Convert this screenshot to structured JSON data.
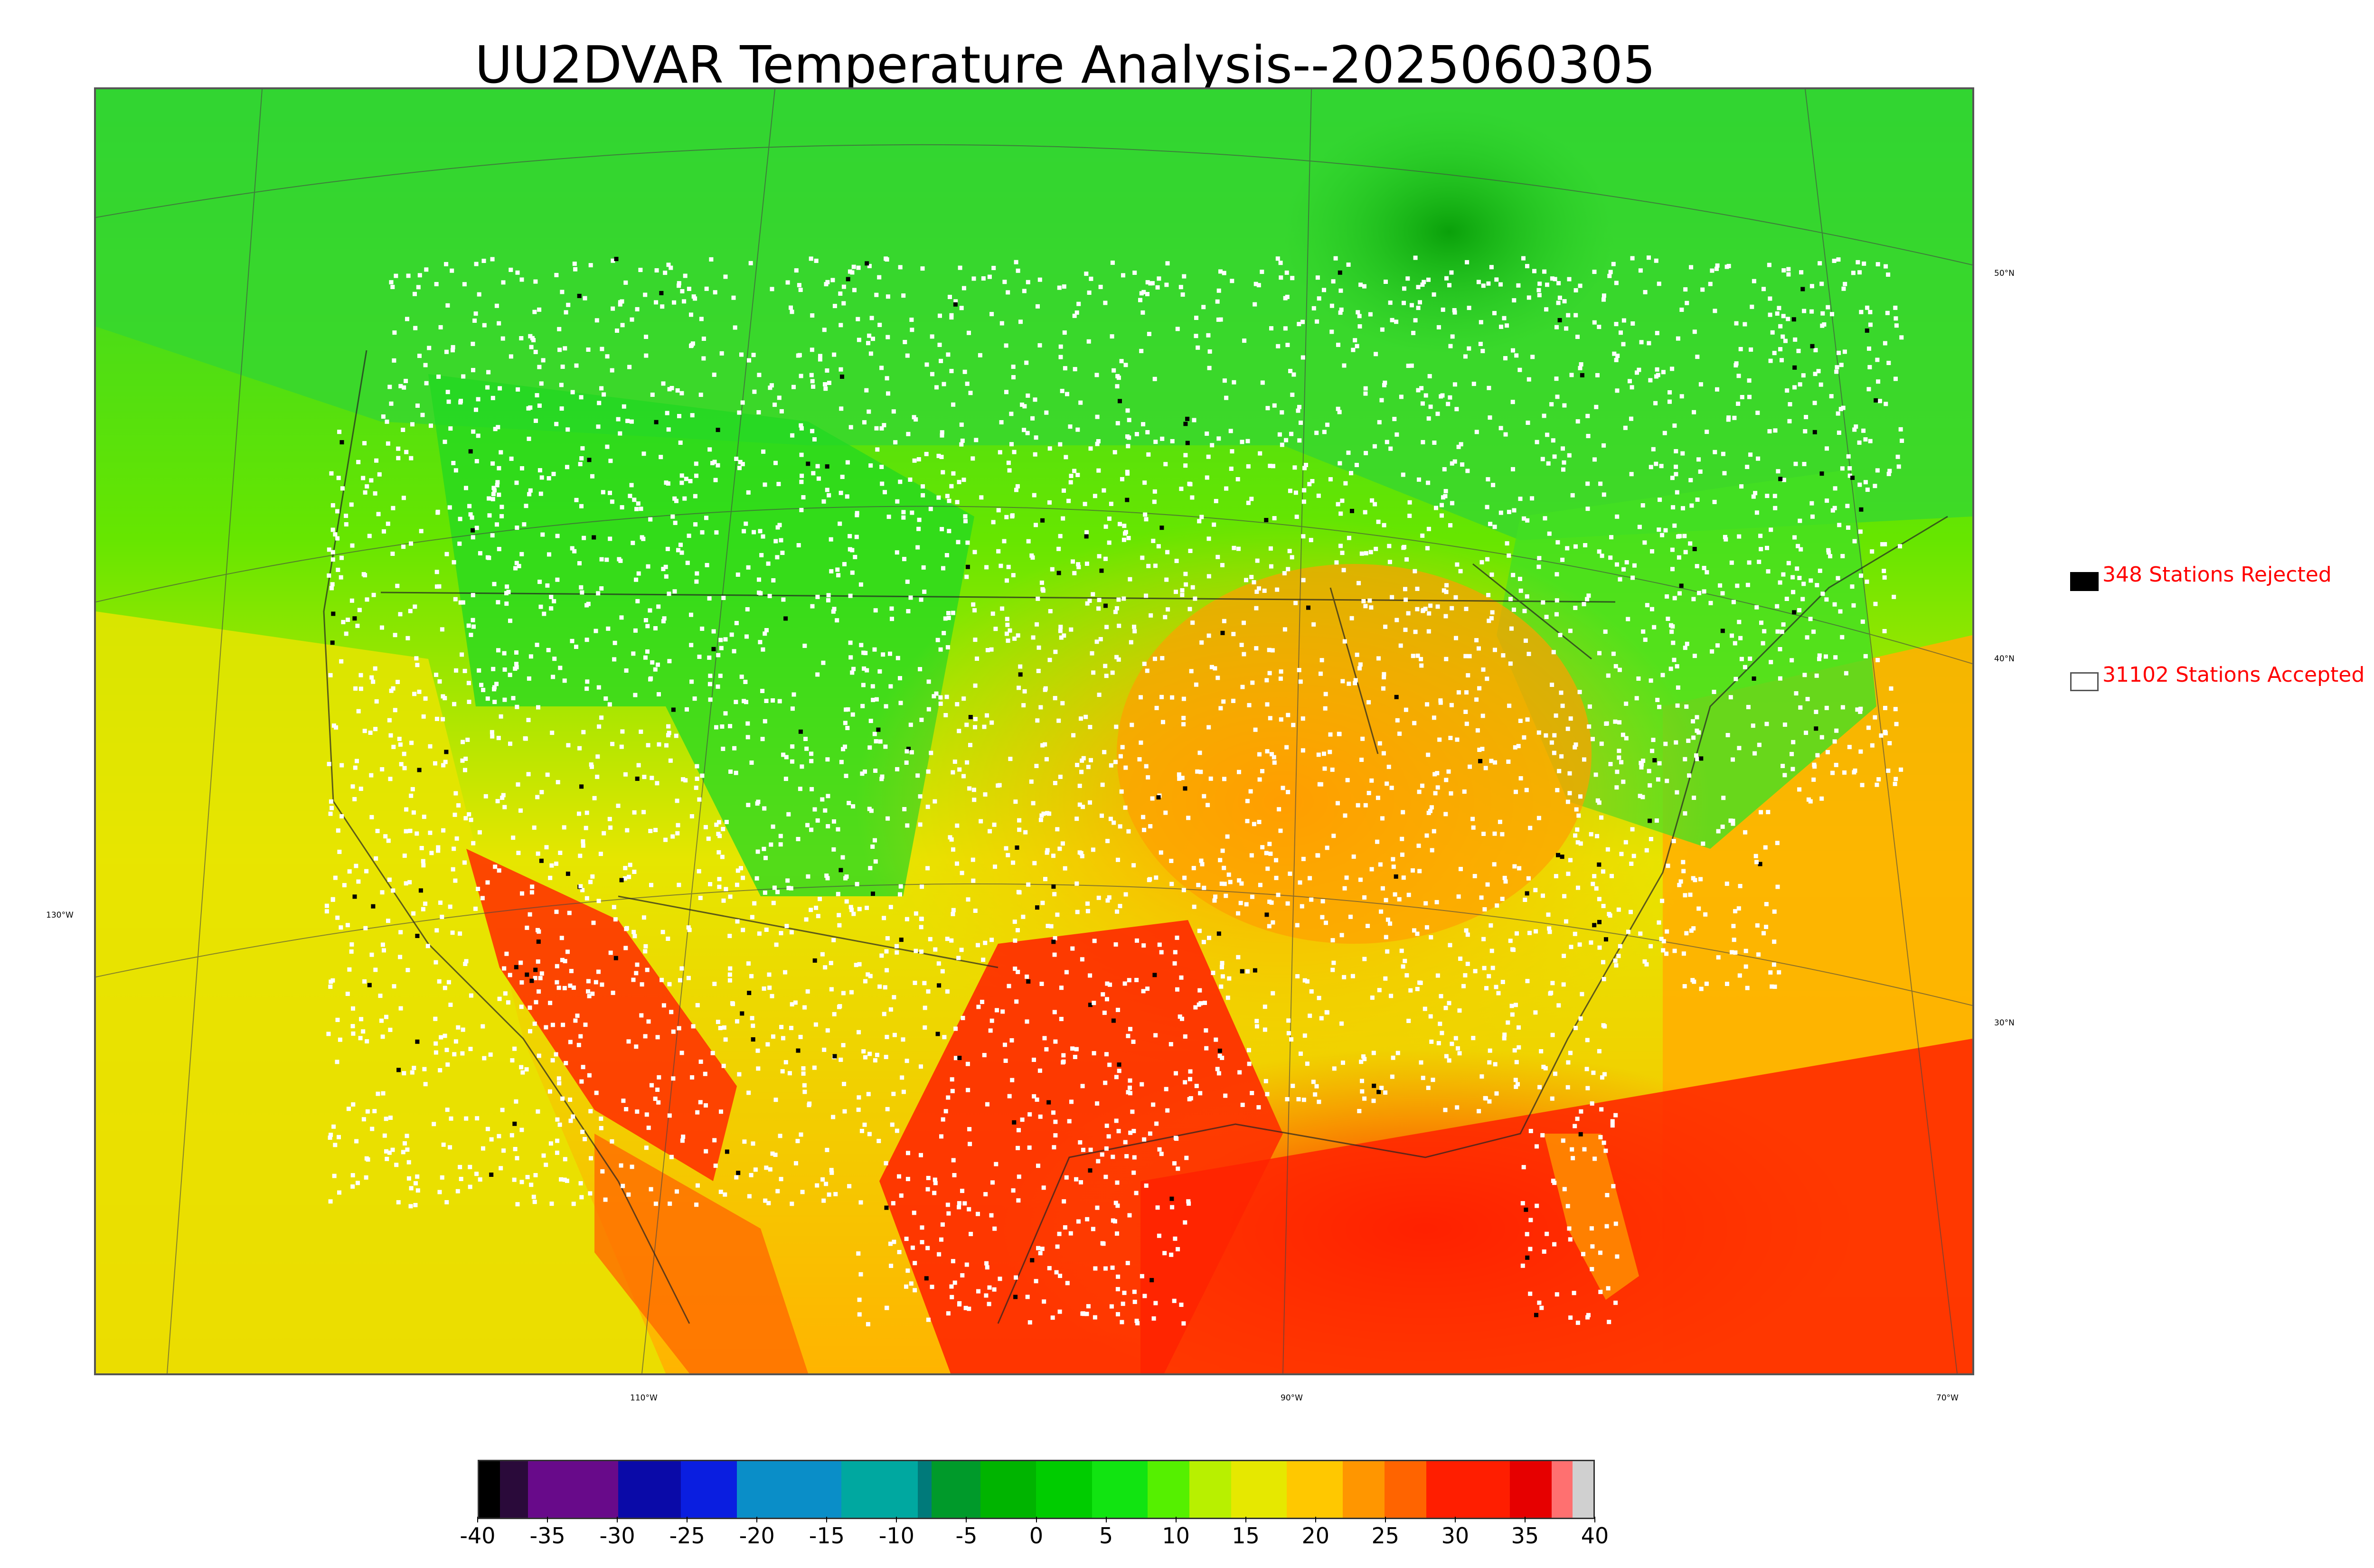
{
  "title": "UU2DVAR Temperature Analysis--2025060305",
  "legend": {
    "rejected": {
      "count": 348,
      "label": "348 Stations Rejected",
      "swatch_color": "#000000",
      "text_color": "#ff0000"
    },
    "accepted": {
      "count": 31102,
      "label": "31102 Stations Accepted",
      "swatch_color": "#ffffff",
      "text_color": "#ff0000"
    }
  },
  "graticule": {
    "latitude_labels": [
      "50°N",
      "40°N",
      "30°N"
    ],
    "longitude_labels": [
      "130°W",
      "110°W",
      "90°W",
      "70°W"
    ]
  },
  "colorbar": {
    "tick_labels": [
      "-40",
      "-35",
      "-30",
      "-25",
      "-20",
      "-15",
      "-10",
      "-5",
      "0",
      "5",
      "10",
      "15",
      "20",
      "25",
      "30",
      "35",
      "40"
    ],
    "segments": [
      {
        "from": -40,
        "to": -38.5,
        "color": "#000000"
      },
      {
        "from": -38.5,
        "to": -36.5,
        "color": "#2a0a3a"
      },
      {
        "from": -36.5,
        "to": -30,
        "color": "#680a8a"
      },
      {
        "from": -30,
        "to": -25.5,
        "color": "#0a0aa8"
      },
      {
        "from": -25.5,
        "to": -21.5,
        "color": "#0a1ee0"
      },
      {
        "from": -21.5,
        "to": -14,
        "color": "#0a8ec8"
      },
      {
        "from": -14,
        "to": -8.5,
        "color": "#00a8a0"
      },
      {
        "from": -8.5,
        "to": -7.5,
        "color": "#007a7a"
      },
      {
        "from": -7.5,
        "to": -4,
        "color": "#009a2a"
      },
      {
        "from": -4,
        "to": 0,
        "color": "#00b400"
      },
      {
        "from": 0,
        "to": 4,
        "color": "#00cc00"
      },
      {
        "from": 4,
        "to": 8,
        "color": "#11e411"
      },
      {
        "from": 8,
        "to": 11,
        "color": "#55f000"
      },
      {
        "from": 11,
        "to": 14,
        "color": "#b8f000"
      },
      {
        "from": 14,
        "to": 18,
        "color": "#e6e800"
      },
      {
        "from": 18,
        "to": 22,
        "color": "#ffc800"
      },
      {
        "from": 22,
        "to": 25,
        "color": "#ff9600"
      },
      {
        "from": 25,
        "to": 28,
        "color": "#ff6400"
      },
      {
        "from": 28,
        "to": 34,
        "color": "#ff1e00"
      },
      {
        "from": 34,
        "to": 37,
        "color": "#e60000"
      },
      {
        "from": 37,
        "to": 38.5,
        "color": "#ff7070"
      },
      {
        "from": 38.5,
        "to": 40,
        "color": "#d0d0d0"
      }
    ]
  },
  "map": {
    "variable": "Temperature",
    "colors": {
      "cold_canada": "#22cc22",
      "north": "#33e633",
      "plains": "#ffb000",
      "southwest": "#ff3300",
      "gulf": "#ff2200",
      "atlantic": "#ffa500",
      "pacific_south": "#f0e000",
      "station_accepted": "#ffffff",
      "station_rejected": "#000000"
    }
  }
}
